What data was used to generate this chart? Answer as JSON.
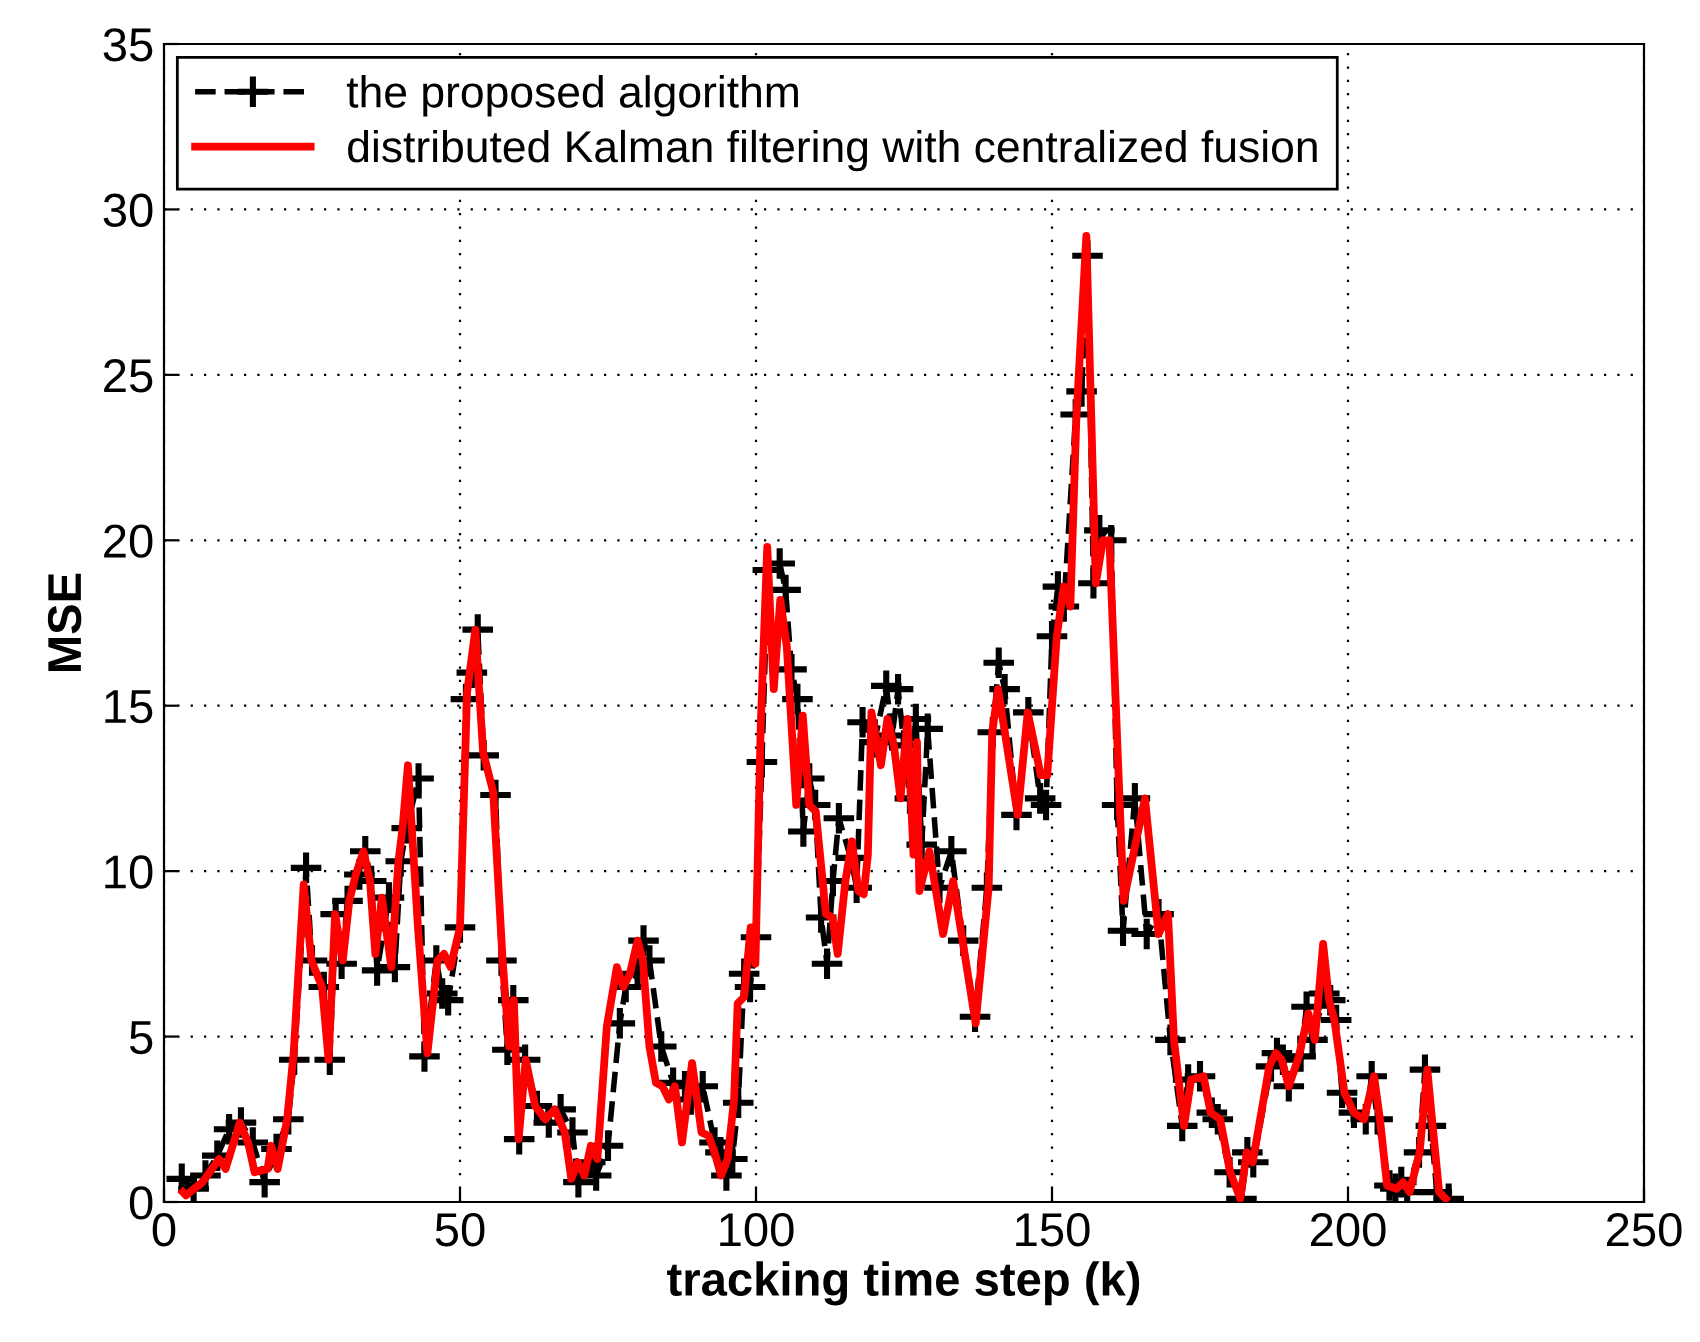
{
  "chart_data": {
    "type": "line",
    "xlabel": "tracking time step (k)",
    "ylabel": "MSE",
    "xlim": [
      0,
      250
    ],
    "xticks": [
      0,
      50,
      100,
      150,
      200,
      250
    ],
    "ylim": [
      0,
      35
    ],
    "yticks": [
      0,
      5,
      10,
      15,
      20,
      25,
      30,
      35
    ],
    "grid": true,
    "legend": "top left",
    "series": [
      {
        "name": "the proposed algorithm",
        "color": "#000000",
        "line_style": "dashed",
        "marker": "cross",
        "x": [
          3,
          5,
          7,
          9,
          11,
          13,
          15,
          17,
          19,
          21,
          22,
          24,
          25,
          27,
          28,
          29,
          30,
          31,
          33,
          34,
          35,
          36,
          38,
          39,
          40,
          41,
          43,
          44,
          46,
          47,
          48,
          50,
          51,
          52,
          53,
          54,
          56,
          57,
          58,
          59,
          60,
          61,
          63,
          65,
          67,
          69,
          70,
          72,
          73,
          75,
          77,
          78,
          80,
          81,
          82,
          84,
          86,
          88,
          89,
          91,
          93,
          94,
          95,
          96,
          97,
          98,
          99,
          100,
          101,
          102,
          104,
          105,
          106,
          107,
          108,
          109,
          110,
          111,
          112,
          113,
          114,
          116,
          117,
          118,
          120,
          122,
          123,
          124,
          125,
          126,
          127,
          128,
          129,
          131,
          133,
          135,
          137,
          139,
          140,
          141,
          142,
          144,
          146,
          148,
          149,
          150,
          151,
          152,
          154,
          155,
          156,
          157,
          158,
          160,
          161,
          162,
          164,
          166,
          168,
          170,
          172,
          173,
          175,
          177,
          178,
          180,
          182,
          183,
          184,
          187,
          188,
          189,
          190,
          192,
          193,
          194,
          196,
          197,
          198,
          199,
          201,
          203,
          204,
          205,
          207,
          208,
          209,
          210,
          212,
          213,
          214,
          215,
          217
        ],
        "values": [
          0.7,
          0.4,
          0.8,
          1.4,
          2.2,
          2.4,
          1.8,
          0.6,
          1.6,
          2.5,
          4.3,
          10.1,
          7.3,
          6.5,
          4.3,
          8.7,
          7.2,
          9.1,
          9.9,
          10.6,
          9.7,
          7.0,
          9.2,
          7.1,
          10.3,
          11.3,
          12.8,
          4.4,
          7.3,
          6.3,
          6.1,
          8.3,
          15.2,
          16.0,
          17.3,
          13.5,
          12.3,
          7.3,
          4.6,
          6.1,
          1.9,
          4.3,
          2.9,
          2.4,
          2.8,
          2.1,
          0.6,
          1.2,
          0.8,
          1.7,
          5.4,
          6.5,
          6.9,
          7.9,
          7.3,
          4.7,
          3.6,
          3.5,
          3.1,
          3.5,
          1.8,
          1.5,
          0.8,
          1.3,
          3.0,
          6.9,
          6.5,
          8.0,
          13.3,
          19.1,
          19.3,
          18.5,
          16.1,
          15.2,
          11.2,
          12.8,
          12.0,
          8.6,
          7.2,
          9.7,
          11.6,
          10.4,
          9.5,
          14.5,
          13.9,
          15.6,
          14.1,
          15.5,
          13.8,
          12.2,
          14.6,
          10.8,
          14.3,
          9.5,
          10.6,
          7.9,
          5.6,
          9.5,
          14.2,
          16.3,
          15.5,
          11.7,
          14.8,
          12.2,
          12.0,
          17.1,
          18.6,
          18.0,
          23.8,
          24.5,
          28.6,
          18.7,
          20.3,
          20.0,
          12.0,
          8.2,
          12.2,
          8.1,
          8.7,
          4.9,
          2.3,
          3.7,
          3.8,
          2.7,
          2.5,
          0.9,
          0.1,
          1.5,
          1.2,
          4.1,
          4.5,
          4.3,
          3.5,
          4.4,
          5.9,
          4.9,
          6.3,
          6.1,
          5.5,
          3.3,
          2.7,
          2.5,
          3.8,
          2.5,
          0.5,
          0.4,
          0.6,
          0.3,
          1.5,
          4.0,
          2.3,
          0.3,
          0.1
        ]
      },
      {
        "name": "distributed Kalman filtering with centralized fusion",
        "color": "#ff0000",
        "line_style": "solid",
        "marker": "none",
        "x": [
          3.2,
          3.7,
          6.5,
          9.3,
          10.4,
          12.8,
          14.2,
          15.3,
          17.5,
          18.1,
          19.2,
          20.8,
          21.9,
          23.6,
          24.9,
          26.7,
          27.8,
          28.9,
          30.2,
          31.3,
          32.4,
          33.7,
          34.8,
          35.7,
          36.8,
          38.4,
          39.6,
          40.3,
          41.2,
          42.9,
          44.5,
          46.2,
          47.3,
          48.4,
          50,
          51.2,
          52.6,
          53.9,
          55.6,
          57.2,
          58.3,
          59.1,
          59.9,
          61.1,
          62.7,
          64.4,
          66,
          67.7,
          68.8,
          69.9,
          71,
          72.1,
          73.2,
          74.8,
          76.5,
          77.6,
          78.7,
          80,
          80.9,
          82,
          83.1,
          84.2,
          85.3,
          86.3,
          87.5,
          89.2,
          90.8,
          92,
          93,
          94.1,
          95.2,
          96.3,
          96.9,
          98,
          99.1,
          99.9,
          100.8,
          101.9,
          103,
          104.1,
          105.2,
          106.8,
          107.9,
          109,
          110.1,
          111.8,
          112.9,
          113.8,
          115.1,
          116.2,
          117.3,
          118.2,
          118.9,
          119.5,
          121.1,
          122.2,
          123.3,
          124.4,
          125.6,
          126.6,
          127.2,
          127.6,
          129.3,
          131.6,
          133.3,
          137.1,
          139.3,
          139.9,
          140.9,
          144.2,
          145.9,
          148.1,
          149.2,
          150.8,
          152,
          153.1,
          154.1,
          155.8,
          157.4,
          158.6,
          159.7,
          161.4,
          162.1,
          165.7,
          168,
          169.6,
          170.6,
          172.3,
          173.5,
          175.6,
          176.8,
          178.4,
          180.1,
          181.8,
          182.9,
          183.9,
          186.7,
          187.8,
          188.8,
          190,
          191.7,
          193.3,
          194.4,
          195.8,
          196.8,
          197.7,
          199.4,
          201,
          202.7,
          204.4,
          205.4,
          206.6,
          208.2,
          209.3,
          210.4,
          212.1,
          213.4,
          214.3,
          215.4,
          216.5
        ],
        "values": [
          0.3,
          0.2,
          0.6,
          1.3,
          1.0,
          2.4,
          1.8,
          0.9,
          1.0,
          1.7,
          1.0,
          2.5,
          4.5,
          9.6,
          7.3,
          6.5,
          4.3,
          8.7,
          7.3,
          9.1,
          9.9,
          10.6,
          9.7,
          7.5,
          9.2,
          7.1,
          10.3,
          11.3,
          13.2,
          8.3,
          4.5,
          7.3,
          7.5,
          7.1,
          8.3,
          15.4,
          17.3,
          13.6,
          12.4,
          7.3,
          4.7,
          6.1,
          1.9,
          4.3,
          2.9,
          2.5,
          2.8,
          2.1,
          0.7,
          1.2,
          0.8,
          1.7,
          1.3,
          5.3,
          7.1,
          6.5,
          6.9,
          7.9,
          7.3,
          4.7,
          3.6,
          3.5,
          3.1,
          3.5,
          1.8,
          4.2,
          2.1,
          2.0,
          1.5,
          0.8,
          1.3,
          3.1,
          6.0,
          6.2,
          8.3,
          7.2,
          14.4,
          19.8,
          15.5,
          18.2,
          16.8,
          12.0,
          14.7,
          12.0,
          11.8,
          8.7,
          8.6,
          7.5,
          9.7,
          10.9,
          9.4,
          9.3,
          10.5,
          14.8,
          13.2,
          14.6,
          13.8,
          12.2,
          14.6,
          10.5,
          13.9,
          9.4,
          10.6,
          8.1,
          9.7,
          5.4,
          9.5,
          14.2,
          15.5,
          11.7,
          14.8,
          12.9,
          12.9,
          17.1,
          18.6,
          18.0,
          23.6,
          29.2,
          18.7,
          20.0,
          20.0,
          12.2,
          9.1,
          12.2,
          8.1,
          8.7,
          4.9,
          2.3,
          3.7,
          3.8,
          2.7,
          2.5,
          0.9,
          0.1,
          1.5,
          1.2,
          4.1,
          4.5,
          4.3,
          3.5,
          4.4,
          5.7,
          4.9,
          7.8,
          6.1,
          5.5,
          3.3,
          2.7,
          2.5,
          3.8,
          2.5,
          0.5,
          0.4,
          0.6,
          0.3,
          1.5,
          4.0,
          2.3,
          0.3,
          0.1
        ]
      }
    ]
  }
}
